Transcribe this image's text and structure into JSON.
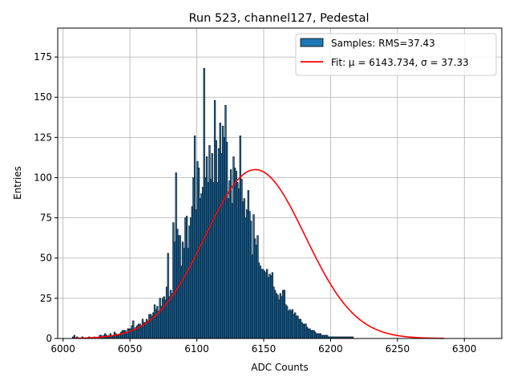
{
  "chart_data": {
    "type": "histogram",
    "title": "Run 523, channel127, Pedestal",
    "xlabel": "ADC Counts",
    "ylabel": "Entries",
    "xlim": [
      5996,
      6328
    ],
    "ylim": [
      0,
      193
    ],
    "xticks": [
      6000,
      6050,
      6100,
      6150,
      6200,
      6250,
      6300
    ],
    "xtick_labels": [
      "6000",
      "6050",
      "6100",
      "6150",
      "6200",
      "6250",
      "6300"
    ],
    "yticks": [
      0,
      25,
      50,
      75,
      100,
      125,
      150,
      175
    ],
    "ytick_labels": [
      "0",
      "25",
      "50",
      "75",
      "100",
      "125",
      "150",
      "175"
    ],
    "grid": true,
    "legend_position": "upper-right",
    "bin_start": 6007,
    "bin_width": 1,
    "bin_counts": [
      1,
      2,
      0,
      1,
      0,
      0,
      0,
      1,
      0,
      0,
      0,
      0,
      1,
      0,
      0,
      0,
      1,
      0,
      0,
      0,
      2,
      2,
      1,
      2,
      3,
      2,
      1,
      2,
      3,
      1,
      2,
      4,
      3,
      2,
      2,
      3,
      4,
      5,
      5,
      5,
      3,
      6,
      6,
      6,
      8,
      11,
      6,
      7,
      8,
      9,
      9,
      8,
      12,
      10,
      10,
      12,
      11,
      15,
      15,
      14,
      16,
      21,
      18,
      20,
      17,
      25,
      20,
      25,
      26,
      24,
      32,
      53,
      26,
      30,
      28,
      72,
      60,
      103,
      68,
      64,
      64,
      45,
      60,
      56,
      75,
      76,
      56,
      70,
      75,
      82,
      100,
      126,
      80,
      110,
      106,
      87,
      90,
      94,
      168,
      100,
      113,
      97,
      120,
      99,
      115,
      97,
      148,
      123,
      97,
      118,
      134,
      115,
      132,
      125,
      145,
      122,
      87,
      98,
      105,
      84,
      113,
      106,
      104,
      97,
      93,
      126,
      99,
      85,
      87,
      75,
      80,
      92,
      79,
      73,
      52,
      77,
      62,
      58,
      64,
      47,
      45,
      43,
      43,
      42,
      41,
      43,
      38,
      40,
      39,
      41,
      32,
      30,
      28,
      27,
      24,
      28,
      26,
      30,
      30,
      21,
      20,
      17,
      18,
      17,
      18,
      15,
      16,
      14,
      14,
      12,
      12,
      10,
      9,
      9,
      9,
      7,
      6,
      6,
      5,
      5,
      5,
      4,
      3,
      3,
      3,
      3,
      2,
      2,
      2,
      2,
      2,
      1,
      1,
      1,
      1,
      1,
      1,
      1,
      1,
      1,
      1,
      1,
      1,
      1,
      1,
      1,
      1,
      1,
      1,
      1
    ],
    "bar_color": "#1f77b4",
    "fit": {
      "mu": 6143.734,
      "sigma": 37.33,
      "peak": 105,
      "x_range": [
        6008,
        6285
      ],
      "color": "#ff0000"
    },
    "legend": [
      {
        "label": "Samples: RMS=37.43",
        "kind": "patch",
        "color": "#1f77b4"
      },
      {
        "label": "Fit: μ = 6143.734, σ = 37.33",
        "kind": "line",
        "color": "#ff0000"
      }
    ]
  }
}
